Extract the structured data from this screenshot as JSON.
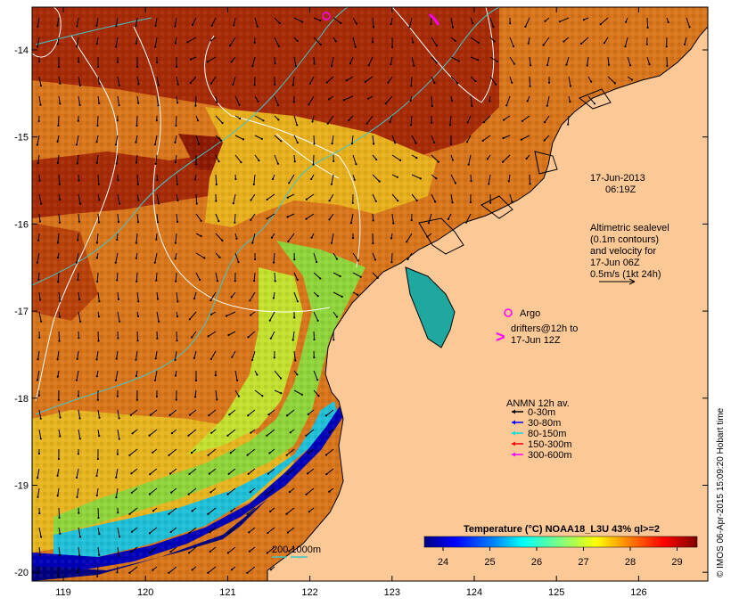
{
  "timestamp": {
    "date": "17-Jun-2013",
    "time": "06:19Z"
  },
  "altimetry": {
    "line1": "Altimetric sealevel",
    "line2": "(0.1m contours)",
    "line3": "and velocity for",
    "line4": "17-Jun 06Z",
    "line5": "0.5m/s (1kt 24h)"
  },
  "argo": {
    "label": "Argo",
    "color": "#ff00ff"
  },
  "drifters": {
    "symbol": ">",
    "line1": "drifters@12h to",
    "line2": "17-Jun 12Z",
    "color": "#ff00ff"
  },
  "anmn": {
    "title": "ANMN 12h av.",
    "items": [
      {
        "label": "0-30m",
        "color": "#000000"
      },
      {
        "label": "30-80m",
        "color": "#0000ff"
      },
      {
        "label": "80-150m",
        "color": "#00e0e0"
      },
      {
        "label": "150-300m",
        "color": "#ff0000"
      },
      {
        "label": "300-600m",
        "color": "#ff00ff"
      }
    ]
  },
  "bathymetry": {
    "label": "200  1000m"
  },
  "colorbar": {
    "title": "Temperature (°C) NOAA18_L3U 43% ql>=2",
    "ticks": [
      "24",
      "25",
      "26",
      "27",
      "28",
      "29"
    ]
  },
  "axes": {
    "x_ticks": [
      "119",
      "120",
      "121",
      "122",
      "123",
      "124",
      "125",
      "126"
    ],
    "y_ticks": [
      "-14",
      "-15",
      "-16",
      "-17",
      "-18",
      "-19",
      "-20"
    ]
  },
  "credit": "© IMOS 06-Apr-2015 15:09:20 Hobart time",
  "colors": {
    "land": "#fcc896",
    "cold": "#00007f",
    "warm": "#7f0000"
  }
}
